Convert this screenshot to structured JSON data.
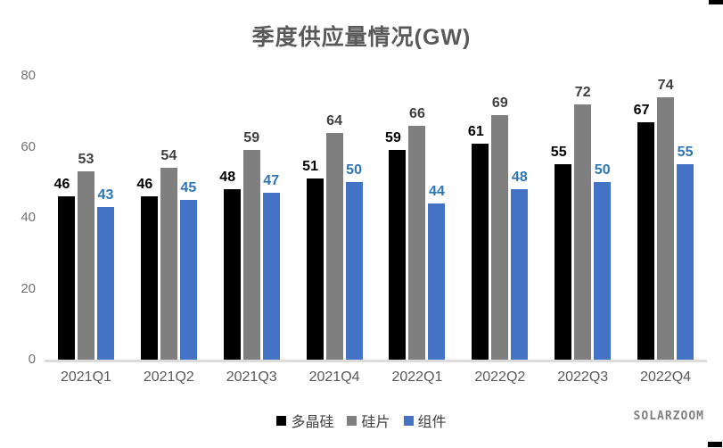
{
  "title": "季度供应量情况(GW)",
  "watermark": "SOLARZOOM",
  "chart_data": {
    "type": "bar",
    "title": "季度供应量情况(GW)",
    "categories": [
      "2021Q1",
      "2021Q2",
      "2021Q3",
      "2021Q4",
      "2022Q1",
      "2022Q2",
      "2022Q3",
      "2022Q4"
    ],
    "series": [
      {
        "name": "多晶硅",
        "color": "#000000",
        "label_color": "#000000",
        "values": [
          46,
          46,
          48,
          51,
          59,
          61,
          55,
          67
        ]
      },
      {
        "name": "硅片",
        "color": "#7F7F7F",
        "label_color": "#404040",
        "values": [
          53,
          54,
          59,
          64,
          66,
          69,
          72,
          74
        ]
      },
      {
        "name": "组件",
        "color": "#4472C4",
        "label_color": "#2E75B6",
        "values": [
          43,
          45,
          47,
          50,
          44,
          48,
          50,
          55
        ]
      }
    ],
    "yticks": [
      0,
      20,
      40,
      60,
      80
    ],
    "ylim": [
      0,
      80
    ],
    "grid": false,
    "legend_position": "bottom",
    "axis_line_color": "#DCDCDC"
  }
}
